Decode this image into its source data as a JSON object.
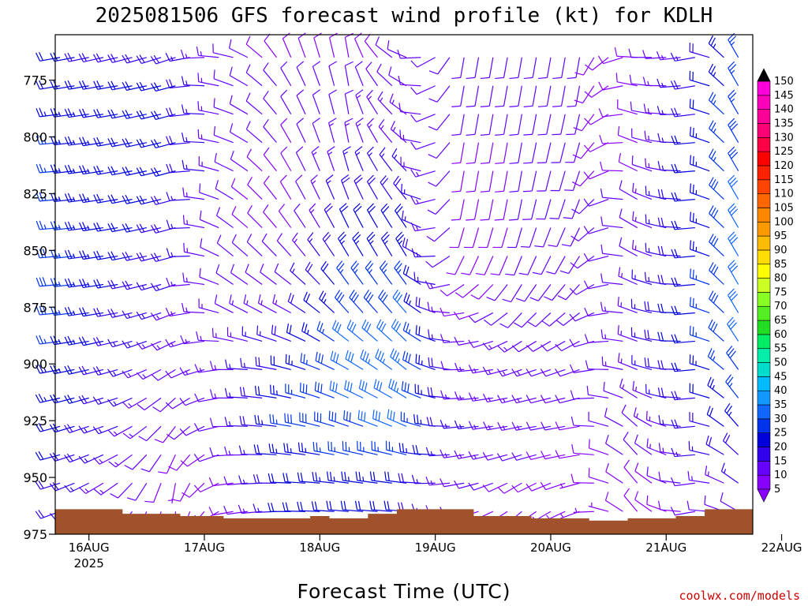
{
  "chart_data": {
    "type": "wind-barb-profile",
    "title": "2025081506 GFS forecast wind profile (kt) for KDLH",
    "xlabel": "Forecast Time (UTC)",
    "credit": "coolwx.com/models",
    "y_axis": {
      "quantity": "pressure (hPa)",
      "range": [
        975,
        755
      ],
      "ticks": [
        775,
        800,
        825,
        850,
        875,
        900,
        925,
        950,
        975
      ],
      "inverted": true
    },
    "x_axis": {
      "range_hours": [
        -7,
        138
      ],
      "ticks": [
        {
          "label": "16AUG",
          "sub": "2025"
        },
        {
          "label": "17AUG",
          "sub": ""
        },
        {
          "label": "18AUG",
          "sub": ""
        },
        {
          "label": "19AUG",
          "sub": ""
        },
        {
          "label": "20AUG",
          "sub": ""
        },
        {
          "label": "21AUG",
          "sub": ""
        },
        {
          "label": "22AUG",
          "sub": ""
        }
      ]
    },
    "colorbar": {
      "levels": [
        5,
        10,
        15,
        20,
        25,
        30,
        35,
        40,
        45,
        50,
        55,
        60,
        65,
        70,
        75,
        80,
        85,
        90,
        95,
        100,
        105,
        110,
        115,
        120,
        125,
        130,
        135,
        140,
        145,
        150
      ],
      "colors": [
        "#8800ff",
        "#6600ff",
        "#3300ee",
        "#0000dd",
        "#0033ee",
        "#1166ff",
        "#1199ff",
        "#00bbff",
        "#00ddcc",
        "#00eeaa",
        "#00ee66",
        "#22dd22",
        "#55ee22",
        "#88ff22",
        "#ccff22",
        "#ffff00",
        "#ffdd00",
        "#ffbb00",
        "#ff9900",
        "#ff8800",
        "#ff6600",
        "#ff4400",
        "#ff2200",
        "#ff0000",
        "#ff0044",
        "#ff0077",
        "#ff0099",
        "#ff00bb",
        "#ff00dd",
        "#000000"
      ]
    },
    "barbs": [
      {
        "h": -6,
        "p": [
          960,
          945,
          925,
          900,
          875,
          850,
          825,
          800,
          775,
          760
        ],
        "spd": [
          18,
          20,
          22,
          25,
          28,
          28,
          25,
          25,
          22,
          20
        ],
        "dir": [
          250,
          255,
          255,
          260,
          265,
          265,
          265,
          265,
          260,
          260
        ]
      },
      {
        "h": 6,
        "p": [
          960,
          945,
          925,
          900,
          875,
          850,
          825,
          800,
          775,
          760
        ],
        "spd": [
          12,
          14,
          16,
          18,
          20,
          22,
          22,
          22,
          20,
          18
        ],
        "dir": [
          230,
          240,
          250,
          255,
          260,
          260,
          260,
          260,
          260,
          255
        ]
      },
      {
        "h": 18,
        "p": [
          960,
          945,
          925,
          900,
          875,
          850,
          825,
          800,
          775,
          760
        ],
        "spd": [
          6,
          8,
          10,
          12,
          15,
          18,
          20,
          20,
          20,
          18
        ],
        "dir": [
          180,
          200,
          220,
          240,
          250,
          255,
          255,
          255,
          255,
          250
        ]
      },
      {
        "h": 30,
        "p": [
          960,
          945,
          925,
          900,
          875,
          850,
          825,
          800,
          775,
          760
        ],
        "spd": [
          8,
          10,
          12,
          14,
          12,
          10,
          10,
          12,
          12,
          10
        ],
        "dir": [
          260,
          265,
          270,
          270,
          300,
          310,
          300,
          290,
          290,
          280
        ]
      },
      {
        "h": 42,
        "p": [
          960,
          945,
          925,
          900,
          875,
          850,
          825,
          800,
          775,
          760
        ],
        "spd": [
          20,
          22,
          28,
          20,
          14,
          10,
          8,
          10,
          10,
          8
        ],
        "dir": [
          270,
          275,
          280,
          285,
          300,
          320,
          330,
          330,
          330,
          340
        ]
      },
      {
        "h": 54,
        "p": [
          960,
          945,
          925,
          900,
          875,
          850,
          825,
          800,
          775,
          760
        ],
        "spd": [
          22,
          25,
          30,
          32,
          28,
          22,
          18,
          14,
          10,
          8
        ],
        "dir": [
          275,
          280,
          290,
          300,
          320,
          330,
          340,
          350,
          350,
          350
        ]
      },
      {
        "h": 66,
        "p": [
          960,
          945,
          925,
          900,
          875,
          850,
          825,
          800,
          775,
          760
        ],
        "spd": [
          20,
          24,
          32,
          34,
          30,
          22,
          18,
          14,
          12,
          10
        ],
        "dir": [
          275,
          280,
          295,
          310,
          320,
          330,
          320,
          310,
          300,
          290
        ]
      },
      {
        "h": 78,
        "p": [
          960,
          945,
          925,
          900,
          875,
          850,
          825,
          800,
          775,
          760
        ],
        "spd": [
          10,
          14,
          16,
          12,
          8,
          8,
          8,
          10,
          10,
          10
        ],
        "dir": [
          260,
          260,
          265,
          270,
          260,
          200,
          190,
          190,
          190,
          190
        ]
      },
      {
        "h": 90,
        "p": [
          960,
          945,
          925,
          900,
          875,
          850,
          825,
          800,
          775,
          760
        ],
        "spd": [
          8,
          10,
          14,
          14,
          12,
          10,
          10,
          10,
          10,
          10
        ],
        "dir": [
          230,
          250,
          260,
          250,
          220,
          200,
          190,
          190,
          190,
          190
        ]
      },
      {
        "h": 102,
        "p": [
          960,
          945,
          925,
          900,
          875,
          850,
          825,
          800,
          775,
          760
        ],
        "spd": [
          6,
          8,
          10,
          10,
          10,
          10,
          10,
          10,
          10,
          10
        ],
        "dir": [
          250,
          260,
          260,
          250,
          230,
          210,
          200,
          195,
          190,
          190
        ]
      },
      {
        "h": 114,
        "p": [
          960,
          945,
          925,
          900,
          875,
          850,
          825,
          800,
          775,
          760
        ],
        "spd": [
          8,
          10,
          12,
          14,
          14,
          12,
          10,
          8,
          8,
          8
        ],
        "dir": [
          320,
          320,
          310,
          290,
          290,
          300,
          300,
          290,
          280,
          270
        ]
      },
      {
        "h": 126,
        "p": [
          960,
          945,
          925,
          900,
          875,
          850,
          825,
          800,
          775,
          760
        ],
        "spd": [
          10,
          14,
          18,
          22,
          22,
          20,
          20,
          20,
          18,
          16
        ],
        "dir": [
          260,
          265,
          265,
          265,
          265,
          265,
          265,
          265,
          260,
          260
        ]
      },
      {
        "h": 134,
        "p": [
          960,
          945,
          925,
          900,
          875,
          850,
          825,
          800,
          775,
          760
        ],
        "spd": [
          12,
          18,
          24,
          30,
          32,
          32,
          30,
          28,
          26,
          25
        ],
        "dir": [
          300,
          310,
          320,
          325,
          330,
          330,
          330,
          330,
          330,
          330
        ]
      }
    ],
    "terrain_surface_pressure": [
      {
        "h": -7,
        "p": 964
      },
      {
        "h": 1,
        "p": 964
      },
      {
        "h": 7,
        "p": 966
      },
      {
        "h": 13,
        "p": 966
      },
      {
        "h": 19,
        "p": 967
      },
      {
        "h": 28,
        "p": 968
      },
      {
        "h": 40,
        "p": 968
      },
      {
        "h": 46,
        "p": 967
      },
      {
        "h": 50,
        "p": 968
      },
      {
        "h": 58,
        "p": 966
      },
      {
        "h": 64,
        "p": 964
      },
      {
        "h": 76,
        "p": 964
      },
      {
        "h": 80,
        "p": 967
      },
      {
        "h": 92,
        "p": 968
      },
      {
        "h": 104,
        "p": 969
      },
      {
        "h": 112,
        "p": 968
      },
      {
        "h": 122,
        "p": 967
      },
      {
        "h": 128,
        "p": 964
      },
      {
        "h": 138,
        "p": 965
      }
    ]
  }
}
